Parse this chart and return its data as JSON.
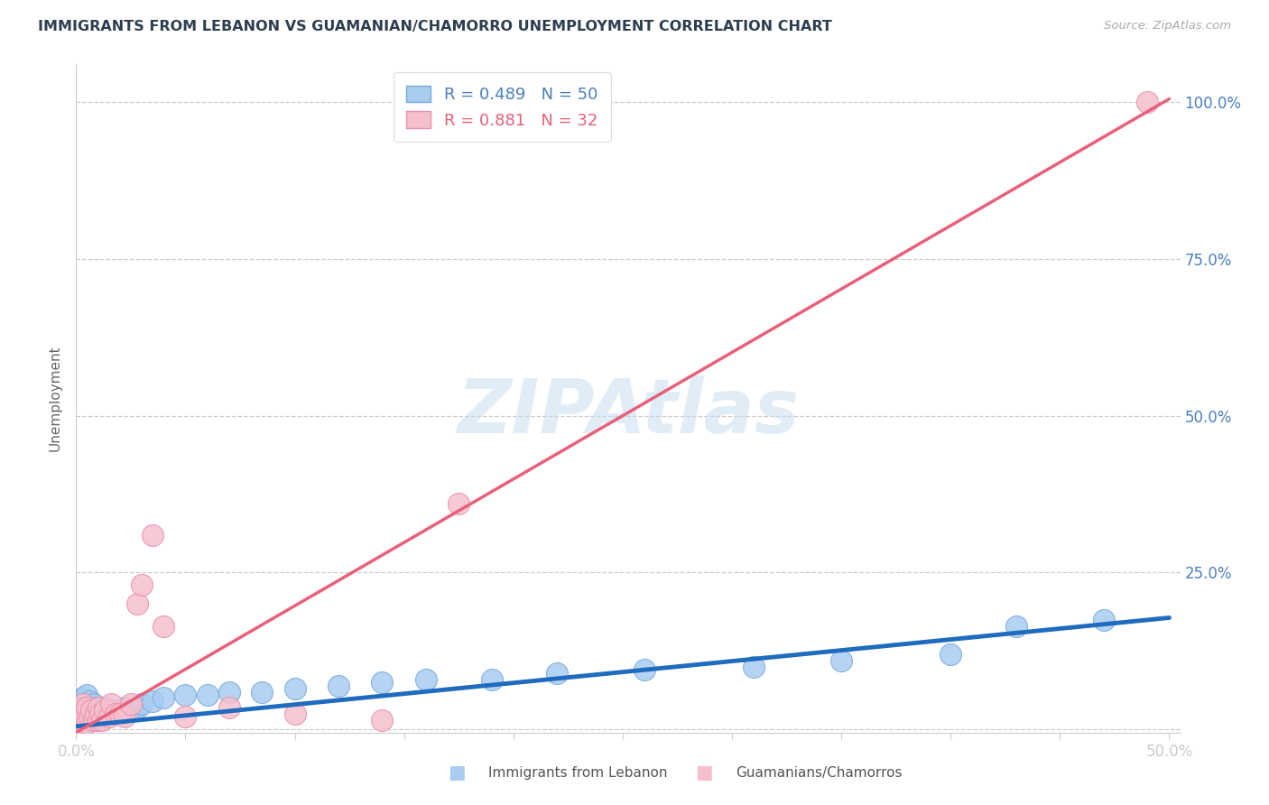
{
  "title": "IMMIGRANTS FROM LEBANON VS GUAMANIAN/CHAMORRO UNEMPLOYMENT CORRELATION CHART",
  "source_text": "Source: ZipAtlas.com",
  "ylabel": "Unemployment",
  "xlim": [
    0.0,
    0.505
  ],
  "ylim": [
    -0.005,
    1.06
  ],
  "xticks": [
    0.0,
    0.05,
    0.1,
    0.15,
    0.2,
    0.25,
    0.3,
    0.35,
    0.4,
    0.45,
    0.5
  ],
  "xticklabels": [
    "0.0%",
    "",
    "",
    "",
    "",
    "",
    "",
    "",
    "",
    "",
    "50.0%"
  ],
  "ytick_positions": [
    0.0,
    0.25,
    0.5,
    0.75,
    1.0
  ],
  "ytick_labels_right": [
    "",
    "25.0%",
    "50.0%",
    "75.0%",
    "100.0%"
  ],
  "watermark": "ZIPAtlas",
  "series1_label": "Immigrants from Lebanon",
  "series1_color": "#a8ccf0",
  "series1_edge_color": "#7aaad8",
  "series1_line_color": "#1e6bbf",
  "series1_R": 0.489,
  "series1_N": 50,
  "series2_label": "Guamanians/Chamorros",
  "series2_color": "#f5c0ce",
  "series2_edge_color": "#e890a8",
  "series2_line_color": "#e8607a",
  "series2_R": 0.881,
  "series2_N": 32,
  "background_color": "#ffffff",
  "grid_color": "#cccccc",
  "title_color": "#2c3e50",
  "axis_label_color": "#666666",
  "tick_label_color": "#4a7fc1",
  "series1_x": [
    0.001,
    0.001,
    0.002,
    0.002,
    0.003,
    0.003,
    0.003,
    0.004,
    0.004,
    0.005,
    0.005,
    0.005,
    0.006,
    0.006,
    0.007,
    0.007,
    0.008,
    0.008,
    0.009,
    0.01,
    0.01,
    0.011,
    0.012,
    0.013,
    0.015,
    0.016,
    0.018,
    0.02,
    0.022,
    0.025,
    0.028,
    0.03,
    0.035,
    0.04,
    0.05,
    0.06,
    0.07,
    0.085,
    0.1,
    0.12,
    0.14,
    0.16,
    0.19,
    0.22,
    0.26,
    0.31,
    0.35,
    0.4,
    0.43,
    0.47
  ],
  "series1_y": [
    0.01,
    0.025,
    0.015,
    0.035,
    0.01,
    0.03,
    0.05,
    0.02,
    0.04,
    0.015,
    0.035,
    0.055,
    0.025,
    0.045,
    0.015,
    0.03,
    0.02,
    0.04,
    0.025,
    0.015,
    0.035,
    0.025,
    0.03,
    0.035,
    0.025,
    0.03,
    0.025,
    0.03,
    0.035,
    0.03,
    0.035,
    0.04,
    0.045,
    0.05,
    0.055,
    0.055,
    0.06,
    0.06,
    0.065,
    0.07,
    0.075,
    0.08,
    0.08,
    0.09,
    0.095,
    0.1,
    0.11,
    0.12,
    0.165,
    0.175
  ],
  "series2_x": [
    0.001,
    0.002,
    0.003,
    0.003,
    0.004,
    0.005,
    0.005,
    0.006,
    0.007,
    0.008,
    0.009,
    0.01,
    0.01,
    0.011,
    0.012,
    0.013,
    0.015,
    0.016,
    0.018,
    0.02,
    0.022,
    0.025,
    0.028,
    0.03,
    0.035,
    0.04,
    0.05,
    0.07,
    0.1,
    0.14,
    0.175,
    0.49
  ],
  "series2_y": [
    0.01,
    0.02,
    0.015,
    0.04,
    0.025,
    0.01,
    0.035,
    0.02,
    0.03,
    0.015,
    0.025,
    0.015,
    0.035,
    0.025,
    0.015,
    0.03,
    0.02,
    0.04,
    0.025,
    0.025,
    0.02,
    0.04,
    0.2,
    0.23,
    0.31,
    0.165,
    0.02,
    0.035,
    0.025,
    0.015,
    0.36,
    1.0
  ],
  "trendline1_x": [
    0.0,
    0.5
  ],
  "trendline1_y": [
    0.005,
    0.178
  ],
  "trendline2_x": [
    0.0,
    0.5
  ],
  "trendline2_y": [
    -0.005,
    1.005
  ]
}
